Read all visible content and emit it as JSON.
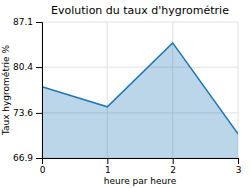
{
  "chart_data": {
    "type": "area",
    "title": "Evolution du taux d'hygrométrie",
    "xlabel": "heure par heure",
    "ylabel": "Taux hygrométrie %",
    "x": [
      0,
      1,
      2,
      3
    ],
    "values": [
      77.5,
      74.5,
      84.0,
      70.5
    ],
    "xlim": [
      0,
      3
    ],
    "ylim": [
      66.9,
      87.1
    ],
    "xticks": [
      0,
      1,
      2,
      3
    ],
    "yticks": [
      66.9,
      73.6,
      80.4,
      87.1
    ],
    "grid": true
  }
}
